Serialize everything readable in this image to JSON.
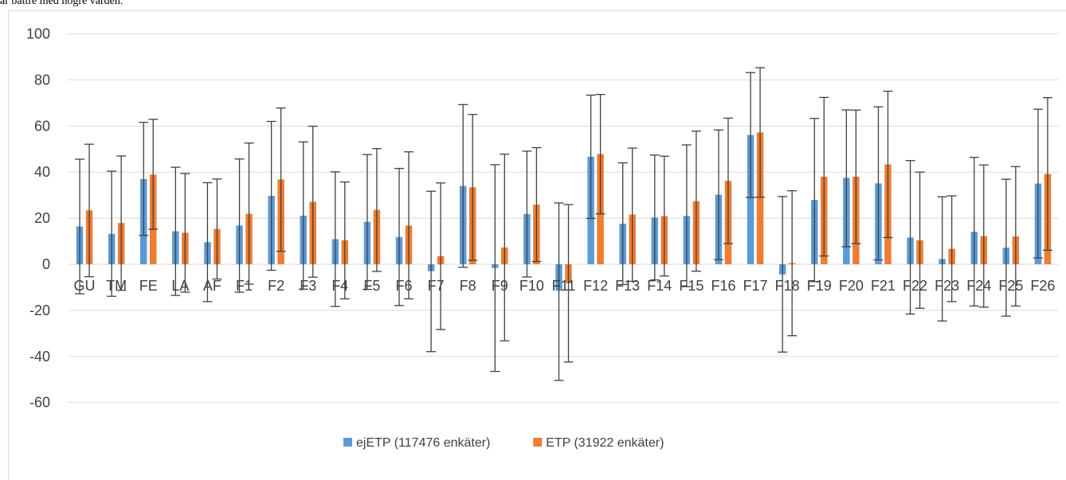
{
  "caption": "är bättre med högre värden.",
  "chart_data": {
    "type": "bar",
    "categories": [
      "GU",
      "TM",
      "FE",
      "LA",
      "AF",
      "F1",
      "F2",
      "F3",
      "F4",
      "F5",
      "F6",
      "F7",
      "F8",
      "F9",
      "F10",
      "F11",
      "F12",
      "F13",
      "F14",
      "F15",
      "F16",
      "F17",
      "F18",
      "F19",
      "F20",
      "F21",
      "F22",
      "F23",
      "F24",
      "F25",
      "F26"
    ],
    "yticks": [
      "100",
      "80",
      "60",
      "40",
      "20",
      "0",
      "-20",
      "-40",
      "-60"
    ],
    "ylim": [
      -70,
      100
    ],
    "series": [
      {
        "name": "ejETP (117476 enkäter)",
        "color": "#5b9bd5",
        "values": [
          16.4,
          13.2,
          37.0,
          14.3,
          9.6,
          16.8,
          29.7,
          21.1,
          10.9,
          18.4,
          11.8,
          -3.0,
          34.0,
          -1.6,
          21.8,
          -11.5,
          46.7,
          17.6,
          20.3,
          21.0,
          30.2,
          56.1,
          -4.4,
          27.9,
          37.5,
          35.1,
          11.6,
          2.3,
          14.1,
          7.2,
          35.0
        ],
        "error_low": [
          -12.8,
          -13.9,
          12.5,
          -13.5,
          -16.2,
          -12.1,
          -2.6,
          -10.8,
          -18.3,
          -10.9,
          -17.9,
          -37.9,
          -1.3,
          -46.5,
          -5.5,
          -50.4,
          19.9,
          -8.8,
          -6.8,
          -9.7,
          2.0,
          29.0,
          -38.1,
          -7.5,
          7.6,
          1.9,
          -21.6,
          -24.6,
          -18.1,
          -22.5,
          2.7
        ],
        "error_high": [
          45.6,
          40.4,
          61.6,
          42.1,
          35.4,
          45.7,
          62.0,
          53.1,
          40.1,
          47.6,
          41.6,
          31.7,
          69.3,
          43.2,
          49.1,
          26.6,
          73.4,
          44.0,
          47.4,
          51.8,
          58.3,
          83.2,
          29.4,
          63.3,
          67.0,
          68.3,
          45.0,
          29.3,
          46.4,
          36.9,
          67.3
        ]
      },
      {
        "name": "ETP (31922 enkäter)",
        "color": "#ed7d31",
        "values": [
          23.4,
          17.9,
          38.9,
          13.7,
          15.3,
          21.9,
          36.8,
          27.1,
          10.4,
          23.6,
          16.8,
          3.5,
          33.4,
          7.3,
          25.9,
          -8.2,
          47.8,
          21.6,
          20.9,
          27.4,
          36.2,
          57.2,
          0.5,
          38.0,
          38.0,
          43.3,
          10.4,
          6.7,
          12.2,
          12.1,
          39.2
        ],
        "error_low": [
          -5.4,
          -11.3,
          15.2,
          -12.1,
          -6.4,
          -8.6,
          5.6,
          -5.6,
          -15.0,
          -3.1,
          -15.0,
          -28.3,
          1.7,
          -33.2,
          1.2,
          -42.4,
          21.9,
          -7.4,
          -5.1,
          -3.0,
          9.0,
          29.1,
          -31.0,
          3.6,
          9.0,
          11.6,
          -19.1,
          -16.2,
          -18.6,
          -18.1,
          6.1
        ],
        "error_high": [
          52.1,
          47.0,
          62.9,
          39.4,
          37.0,
          52.6,
          67.8,
          59.9,
          35.7,
          50.2,
          48.8,
          35.3,
          65.0,
          47.8,
          50.6,
          25.9,
          73.7,
          50.4,
          46.9,
          57.8,
          63.4,
          85.3,
          31.9,
          72.4,
          66.9,
          75.1,
          40.0,
          29.7,
          43.1,
          42.4,
          72.3
        ]
      }
    ],
    "grid": true,
    "legend_position": "bottom"
  }
}
